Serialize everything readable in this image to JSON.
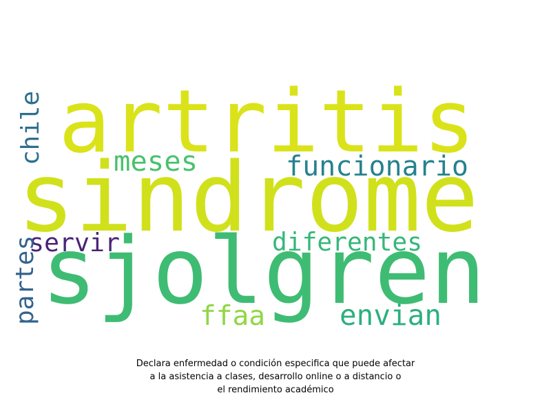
{
  "chart_data": {
    "type": "wordcloud",
    "words": [
      {
        "text": "sindrome",
        "weight": 100,
        "color": "#d0e11c"
      },
      {
        "text": "sjolgren",
        "weight": 93,
        "color": "#3fbc73"
      },
      {
        "text": "artritis",
        "weight": 87,
        "color": "#dae319"
      },
      {
        "text": "funcionario",
        "weight": 29,
        "color": "#26828e"
      },
      {
        "text": "meses",
        "weight": 29,
        "color": "#4ac16d"
      },
      {
        "text": "diferentes",
        "weight": 29,
        "color": "#35b779"
      },
      {
        "text": "servir",
        "weight": 29,
        "color": "#482475"
      },
      {
        "text": "envian",
        "weight": 29,
        "color": "#2ab07f"
      },
      {
        "text": "ffaa",
        "weight": 29,
        "color": "#8fd744"
      },
      {
        "text": "chile",
        "weight": 29,
        "color": "#2e6f8e"
      },
      {
        "text": "partes",
        "weight": 29,
        "color": "#33638d"
      }
    ]
  },
  "caption": {
    "lines": [
      "Declara enfermedad o condición especifica que puede afectar",
      "a la asistencia a clases, desarrollo online o a distancio o",
      "el rendimiento académico"
    ]
  }
}
